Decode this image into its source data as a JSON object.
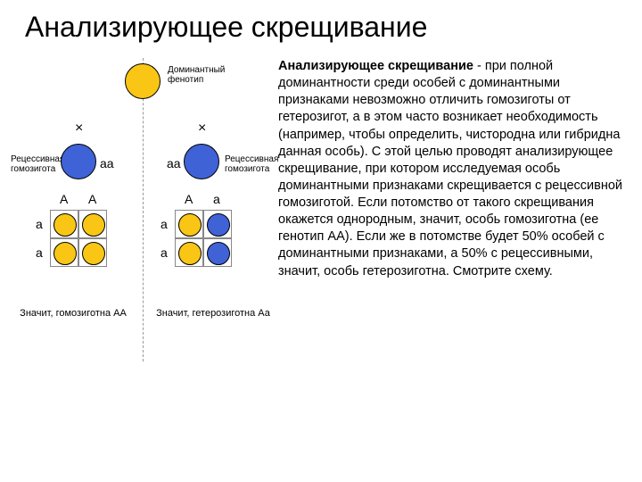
{
  "title": "Анализирующее скрещивание",
  "body": {
    "bold_lead": "Анализирующее скрещивание",
    "rest": " - при полной доминантности среди особей с доминантными признаками невозможно отличить гомозиготы от гетерозигот, а в этом часто возникает необходимость (например, чтобы определить, чистородна или гибридна данная особь). С этой целью проводят анализирующее скрещивание, при котором исследуемая особь доминантными признаками скрещивается с рецессивной гомозиготой. Если потомство от такого скрещивания окажется однородным, значит, особь гомозиготна (ее генотип АА). Если же в потомстве будет 50% особей с доминантными признаками, а 50% с рецессивными, значит, особь гетерозиготна. Смотрите схему."
  },
  "diagram": {
    "colors": {
      "dominant": "#f9c616",
      "recessive": "#3f62d7",
      "border": "#000000",
      "grid": "#888888",
      "bg": "#ffffff"
    },
    "circle_radius_large": 36,
    "circle_radius_small": 26,
    "labels": {
      "dominant_phenotype": "Доминантный\nфенотип",
      "recessive_homozygote_left": "Рецессивная\nгомозигота",
      "recessive_homozygote_right": "Рецессивная\nгомозигота",
      "aa_left": "аа",
      "aa_right": "аа",
      "cross": "×"
    },
    "left": {
      "col_alleles": [
        "A",
        "A"
      ],
      "row_alleles": [
        "a",
        "a"
      ],
      "cells": [
        {
          "r": 0,
          "c": 0,
          "color": "#f9c616"
        },
        {
          "r": 0,
          "c": 1,
          "color": "#f9c616"
        },
        {
          "r": 1,
          "c": 0,
          "color": "#f9c616"
        },
        {
          "r": 1,
          "c": 1,
          "color": "#f9c616"
        }
      ],
      "caption": "Значит, гомозиготна АА"
    },
    "right": {
      "col_alleles": [
        "A",
        "a"
      ],
      "row_alleles": [
        "a",
        "a"
      ],
      "cells": [
        {
          "r": 0,
          "c": 0,
          "color": "#f9c616"
        },
        {
          "r": 0,
          "c": 1,
          "color": "#3f62d7"
        },
        {
          "r": 1,
          "c": 0,
          "color": "#f9c616"
        },
        {
          "r": 1,
          "c": 1,
          "color": "#3f62d7"
        }
      ],
      "caption": "Значит, гетерозиготна Аа"
    }
  }
}
